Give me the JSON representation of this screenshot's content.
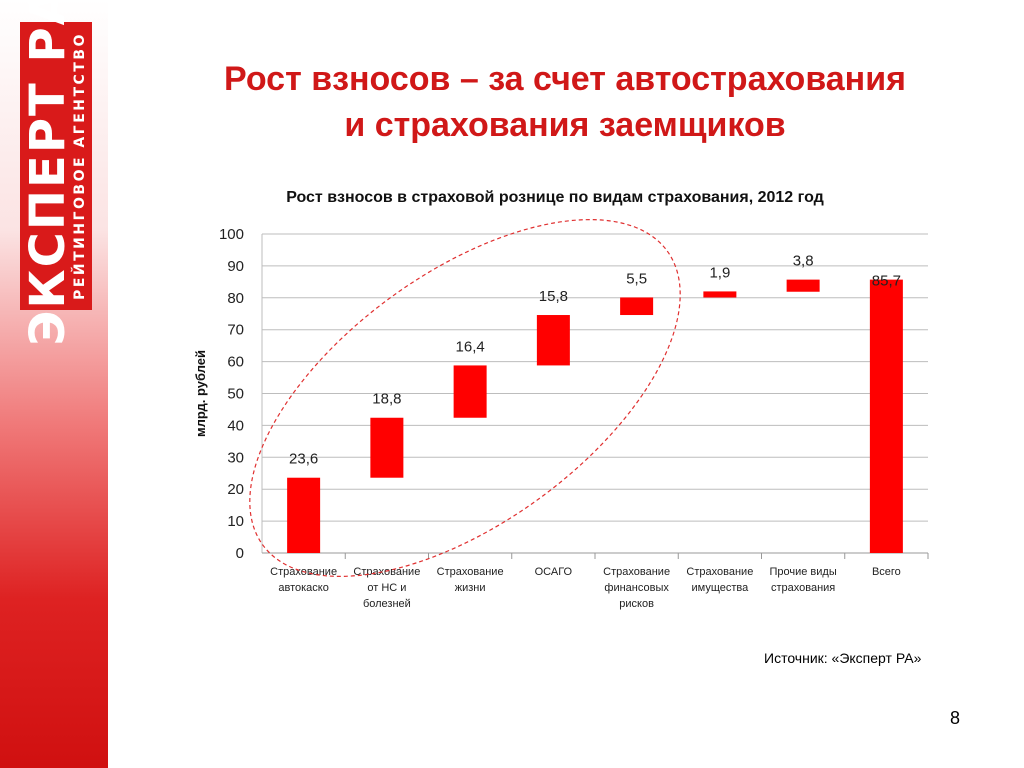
{
  "logo": {
    "main": "ЭКСПЕРТ РА",
    "sub": "РЕЙТИНГОВОЕ АГЕНТСТВО"
  },
  "slide": {
    "title_line1": "Рост взносов – за счет автострахования",
    "title_line2": "и страхования заемщиков",
    "source": "Источник: «Эксперт РА»",
    "page_number": "8"
  },
  "colors": {
    "accent": "#d01818",
    "bar": "#ff0000",
    "grid": "#bdbdbd",
    "ellipse": "#e03030"
  },
  "chart_data": {
    "type": "bar",
    "subtype": "waterfall",
    "title": "Рост взносов в страховой рознице по видам страхования, 2012 год",
    "ylabel": "млрд. рублей",
    "xlabel": "",
    "ylim": [
      0,
      100
    ],
    "yticks": [
      0,
      10,
      20,
      30,
      40,
      50,
      60,
      70,
      80,
      90,
      100
    ],
    "grid": true,
    "categories": [
      [
        "Страхование",
        "автокаско"
      ],
      [
        "Страхование",
        "от НС и",
        "болезней"
      ],
      [
        "Страхование",
        "жизни"
      ],
      [
        "ОСАГО"
      ],
      [
        "Страхование",
        "финансовых",
        "рисков"
      ],
      [
        "Страхование",
        "имущества"
      ],
      [
        "Прочие виды",
        "страхования"
      ],
      [
        "Всего"
      ]
    ],
    "values": [
      23.6,
      18.8,
      16.4,
      15.8,
      5.5,
      1.9,
      3.8,
      85.7
    ],
    "labels": [
      "23,6",
      "18,8",
      "16,4",
      "15,8",
      "5,5",
      "1,9",
      "3,8",
      "85,7"
    ],
    "bars": [
      {
        "bottom": 0,
        "top": 23.6
      },
      {
        "bottom": 23.6,
        "top": 42.4
      },
      {
        "bottom": 42.4,
        "top": 58.8
      },
      {
        "bottom": 58.8,
        "top": 74.6
      },
      {
        "bottom": 74.6,
        "top": 80.1
      },
      {
        "bottom": 80.1,
        "top": 82.0
      },
      {
        "bottom": 81.9,
        "top": 85.7
      },
      {
        "bottom": 0,
        "top": 85.7
      }
    ],
    "highlight": "dashed ellipse around first five categories"
  }
}
